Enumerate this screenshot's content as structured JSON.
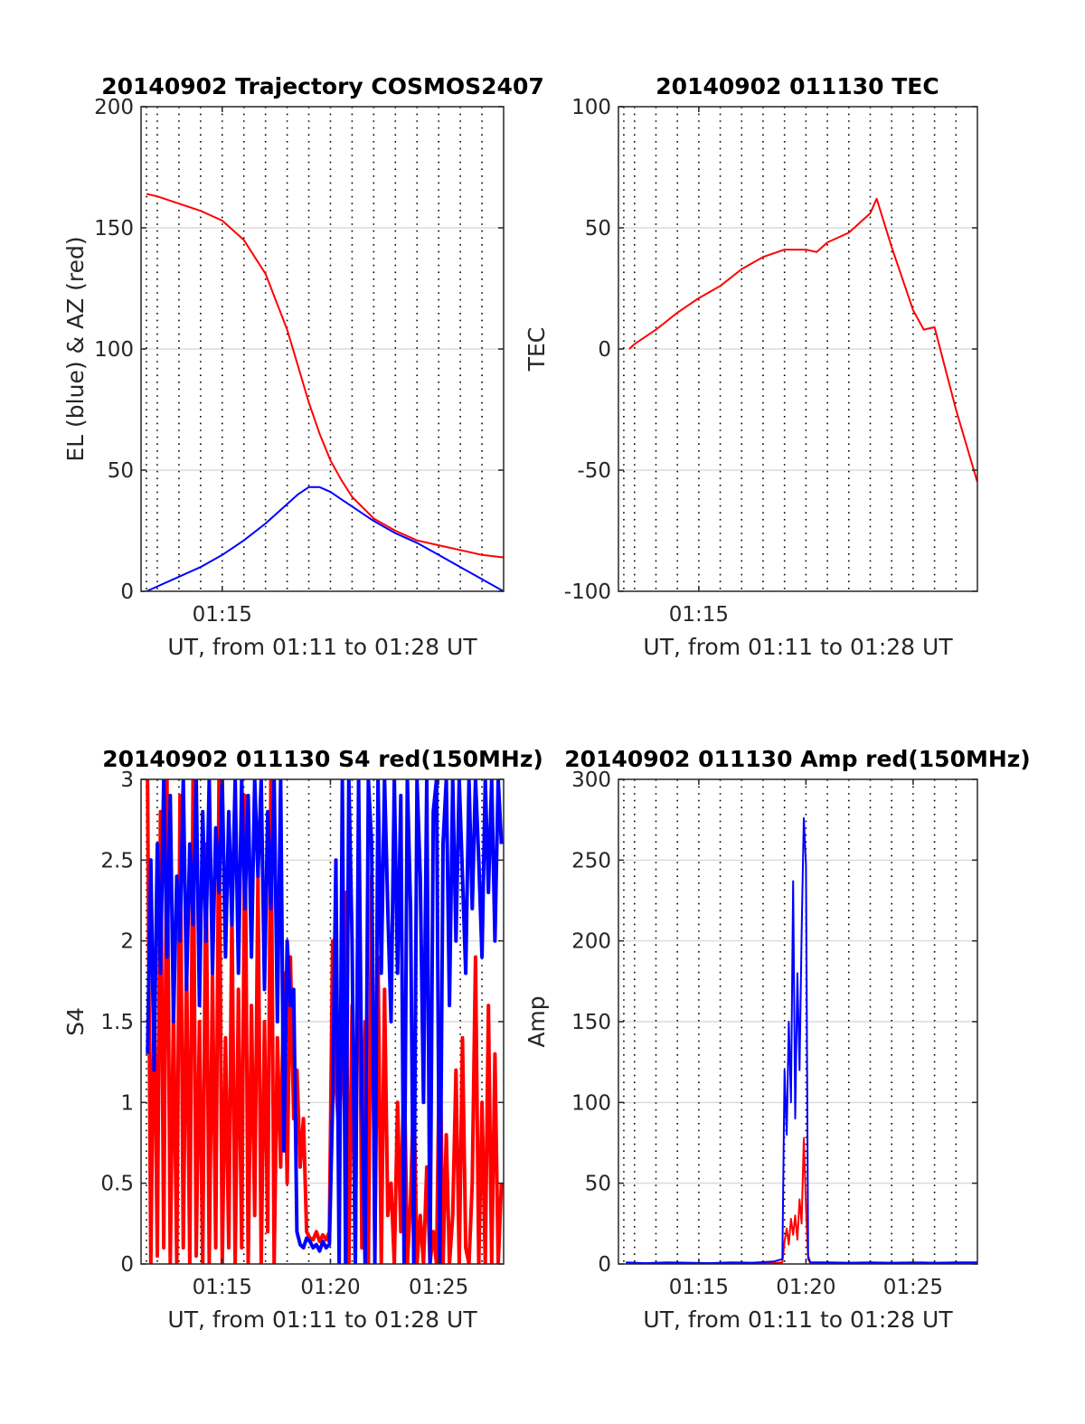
{
  "chart_data": [
    {
      "type": "line",
      "title": "20140902 Trajectory COSMOS2407",
      "xlabel": "UT, from 01:11 to 01:28 UT",
      "ylabel": "EL (blue) & AZ (red)",
      "xlim": [
        11.25,
        28.0
      ],
      "ylim": [
        0,
        200
      ],
      "x_ticks": [
        15
      ],
      "x_tick_labels": [
        "01:15"
      ],
      "y_ticks": [
        0,
        50,
        100,
        150,
        200
      ],
      "y_tick_labels": [
        "0",
        "50",
        "100",
        "150",
        "200"
      ],
      "grid": true,
      "series": [
        {
          "color": "#ff0000",
          "x": [
            11.5,
            12,
            13,
            14,
            15,
            16,
            17,
            18,
            18.5,
            19,
            19.5,
            20,
            20.5,
            21,
            22,
            23,
            24,
            25,
            26,
            27,
            28
          ],
          "y": [
            164,
            163,
            160,
            157,
            153,
            145,
            131,
            108,
            93,
            78,
            65,
            54,
            46,
            39,
            30,
            25,
            21,
            19,
            17,
            15,
            14
          ]
        },
        {
          "color": "#0000ff",
          "x": [
            11.5,
            12,
            13,
            14,
            15,
            16,
            17,
            18,
            18.5,
            19,
            19.5,
            20,
            20.5,
            21,
            22,
            23,
            24,
            25,
            26,
            27,
            28
          ],
          "y": [
            0,
            2,
            6,
            10,
            15,
            21,
            28,
            36,
            40,
            43,
            43,
            41,
            38,
            35,
            29,
            24,
            20,
            15,
            10,
            5,
            0
          ]
        }
      ]
    },
    {
      "type": "line",
      "title": "20140902 011130 TEC",
      "xlabel": "UT, from 01:11 to 01:28 UT",
      "ylabel": "TEC",
      "xlim": [
        11.25,
        28.0
      ],
      "ylim": [
        -100,
        100
      ],
      "x_ticks": [
        15
      ],
      "x_tick_labels": [
        "01:15"
      ],
      "y_ticks": [
        -100,
        -50,
        0,
        50,
        100
      ],
      "y_tick_labels": [
        "-100",
        "-50",
        "0",
        "50",
        "100"
      ],
      "grid": true,
      "series": [
        {
          "color": "#ff0000",
          "x": [
            11.75,
            12,
            13,
            14,
            15,
            16,
            17,
            18,
            19,
            20,
            20.5,
            21,
            22,
            23,
            23.3,
            24,
            25,
            25.5,
            26,
            26.5,
            27,
            28
          ],
          "y": [
            0,
            2,
            8,
            15,
            21,
            26,
            33,
            38,
            41,
            41,
            40,
            44,
            48,
            56,
            62,
            42,
            16,
            8,
            9,
            -8,
            -25,
            -55
          ]
        }
      ]
    },
    {
      "type": "line",
      "title": "20140902 011130 S4 red(150MHz)",
      "xlabel": "UT, from 01:11 to 01:28 UT",
      "ylabel": "S4",
      "xlim": [
        11.25,
        28.0
      ],
      "ylim": [
        0,
        3
      ],
      "x_ticks": [
        15,
        20,
        25
      ],
      "x_tick_labels": [
        "01:15",
        "01:20",
        "01:25"
      ],
      "y_ticks": [
        0,
        0.5,
        1,
        1.5,
        2,
        2.5,
        3
      ],
      "y_tick_labels": [
        "0",
        "0.5",
        "1",
        "1.5",
        "2",
        "2.5",
        "3"
      ],
      "grid": true,
      "series": [
        {
          "color": "#ff0000",
          "x": [
            11.55,
            11.7,
            11.85,
            12.0,
            12.15,
            12.3,
            12.45,
            12.6,
            12.75,
            12.9,
            13.05,
            13.2,
            13.35,
            13.5,
            13.65,
            13.8,
            13.95,
            14.1,
            14.25,
            14.4,
            14.55,
            14.7,
            14.85,
            15.0,
            15.15,
            15.3,
            15.45,
            15.6,
            15.75,
            15.9,
            16.05,
            16.2,
            16.35,
            16.5,
            16.65,
            16.8,
            16.95,
            17.1,
            17.25,
            17.4,
            17.55,
            17.7,
            17.85,
            18.0,
            18.15,
            18.3,
            18.45,
            18.6,
            18.75,
            18.9,
            19.05,
            19.2,
            19.35,
            19.5,
            19.65,
            19.8,
            19.95,
            20.1,
            20.25,
            20.4,
            20.55,
            20.7,
            20.85,
            21.0,
            21.15,
            21.3,
            21.45,
            21.6,
            21.75,
            21.9,
            22.05,
            22.2,
            22.35,
            22.5,
            22.65,
            22.8,
            22.95,
            23.1,
            23.25,
            23.4,
            23.55,
            23.7,
            23.85,
            24.0,
            24.15,
            24.3,
            24.45,
            24.6,
            24.75,
            24.9,
            25.05,
            25.2,
            25.35,
            25.5,
            25.65,
            25.8,
            25.95,
            26.1,
            26.25,
            26.4,
            26.55,
            26.7,
            26.85,
            27.0,
            27.15,
            27.3,
            27.45,
            27.6,
            27.75,
            27.9
          ],
          "y": [
            3.0,
            0.0,
            1.8,
            0.05,
            2.8,
            0.1,
            3.0,
            0.0,
            1.6,
            0.0,
            2.9,
            0.1,
            1.9,
            0.0,
            3.0,
            0.05,
            1.5,
            0.0,
            2.6,
            0.0,
            1.8,
            0.1,
            3.0,
            0.0,
            1.4,
            0.1,
            2.2,
            0.0,
            1.7,
            0.1,
            2.9,
            0.0,
            1.6,
            0.3,
            2.4,
            0.0,
            1.5,
            0.2,
            3.0,
            0.0,
            1.4,
            0.6,
            1.8,
            0.5,
            1.9,
            0.9,
            1.2,
            0.6,
            0.9,
            0.2,
            0.16,
            0.15,
            0.2,
            0.14,
            0.18,
            0.15,
            0.2,
            2.0,
            1.1,
            0.8,
            1.3,
            2.3,
            0.0,
            1.6,
            0.0,
            2.8,
            0.1,
            1.5,
            0.0,
            2.4,
            0.1,
            1.9,
            0.0,
            1.7,
            0.3,
            0.5,
            0.0,
            1.0,
            0.2,
            1.3,
            0.0,
            0.4,
            1.1,
            0.0,
            0.3,
            0.0,
            0.6,
            0.0,
            0.2,
            0.0,
            1.5,
            0.0,
            0.8,
            0.0,
            0.3,
            1.2,
            0.0,
            1.4,
            0.1,
            0.0,
            0.5,
            1.9,
            0.0,
            1.0,
            0.0,
            1.6,
            0.0,
            1.3,
            0.0,
            0.5
          ]
        },
        {
          "color": "#0000ff",
          "x": [
            11.55,
            11.7,
            11.85,
            12.0,
            12.15,
            12.3,
            12.45,
            12.6,
            12.75,
            12.9,
            13.05,
            13.2,
            13.35,
            13.5,
            13.65,
            13.8,
            13.95,
            14.1,
            14.25,
            14.4,
            14.55,
            14.7,
            14.85,
            15.0,
            15.15,
            15.3,
            15.45,
            15.6,
            15.75,
            15.9,
            16.05,
            16.2,
            16.35,
            16.5,
            16.65,
            16.8,
            16.95,
            17.1,
            17.25,
            17.4,
            17.55,
            17.7,
            17.85,
            18.0,
            18.15,
            18.3,
            18.45,
            18.6,
            18.75,
            18.9,
            19.05,
            19.2,
            19.35,
            19.5,
            19.65,
            19.8,
            19.95,
            20.1,
            20.25,
            20.4,
            20.55,
            20.7,
            20.85,
            21.0,
            21.15,
            21.3,
            21.45,
            21.6,
            21.75,
            21.9,
            22.05,
            22.2,
            22.35,
            22.5,
            22.65,
            22.8,
            22.95,
            23.1,
            23.25,
            23.4,
            23.55,
            23.7,
            23.85,
            24.0,
            24.15,
            24.3,
            24.45,
            24.6,
            24.75,
            24.9,
            25.05,
            25.2,
            25.35,
            25.5,
            25.65,
            25.8,
            25.95,
            26.1,
            26.25,
            26.4,
            26.55,
            26.7,
            26.85,
            27.0,
            27.15,
            27.3,
            27.45,
            27.6,
            27.75,
            27.9
          ],
          "y": [
            1.3,
            2.5,
            1.2,
            2.6,
            1.8,
            3.0,
            1.9,
            2.9,
            1.5,
            2.4,
            2.0,
            3.0,
            1.7,
            2.6,
            2.1,
            3.0,
            1.6,
            2.8,
            2.0,
            3.0,
            1.8,
            2.7,
            2.3,
            3.0,
            1.9,
            2.8,
            2.1,
            3.0,
            1.8,
            3.0,
            2.2,
            2.9,
            1.9,
            3.0,
            2.4,
            3.0,
            1.7,
            2.8,
            2.2,
            3.0,
            1.5,
            3.0,
            0.7,
            2.0,
            1.6,
            1.7,
            0.2,
            0.12,
            0.1,
            0.16,
            0.14,
            0.1,
            0.12,
            0.08,
            0.14,
            0.1,
            0.12,
            1.0,
            2.5,
            0.0,
            3.0,
            0.0,
            3.0,
            2.0,
            0.0,
            3.0,
            1.0,
            0.0,
            3.0,
            2.6,
            0.0,
            3.0,
            1.8,
            3.0,
            2.2,
            1.5,
            3.0,
            1.8,
            2.9,
            0.0,
            3.0,
            2.2,
            0.0,
            3.0,
            2.4,
            1.0,
            3.0,
            0.0,
            2.8,
            3.0,
            0.0,
            2.6,
            3.0,
            1.6,
            3.0,
            2.0,
            3.0,
            2.4,
            1.8,
            3.0,
            2.2,
            3.0,
            2.5,
            1.9,
            3.0,
            2.3,
            3.0,
            2.0,
            3.0,
            2.6
          ]
        }
      ]
    },
    {
      "type": "line",
      "title": "20140902 011130 Amp red(150MHz)",
      "xlabel": "UT, from 01:11 to 01:28 UT",
      "ylabel": "Amp",
      "xlim": [
        11.25,
        28.0
      ],
      "ylim": [
        0,
        300
      ],
      "x_ticks": [
        15,
        20,
        25
      ],
      "x_tick_labels": [
        "01:15",
        "01:20",
        "01:25"
      ],
      "y_ticks": [
        0,
        50,
        100,
        150,
        200,
        250,
        300
      ],
      "y_tick_labels": [
        "0",
        "50",
        "100",
        "150",
        "200",
        "250",
        "300"
      ],
      "grid": true,
      "series": [
        {
          "color": "#ff0000",
          "x": [
            11.6,
            12.5,
            13.5,
            14.5,
            15.5,
            16.5,
            17.5,
            18.5,
            18.9,
            19.0,
            19.1,
            19.2,
            19.3,
            19.4,
            19.5,
            19.6,
            19.7,
            19.8,
            19.9,
            20.0,
            20.1,
            20.2,
            21,
            22,
            23,
            24,
            25,
            26,
            27,
            28
          ],
          "y": [
            0.5,
            0.4,
            0.6,
            0.5,
            0.4,
            0.5,
            0.6,
            0.5,
            1,
            14,
            22,
            12,
            28,
            18,
            30,
            15,
            40,
            25,
            78,
            35,
            3,
            0.6,
            0.5,
            0.4,
            0.6,
            0.5,
            0.4,
            0.5,
            0.6,
            0.5
          ]
        },
        {
          "color": "#0000ff",
          "x": [
            11.6,
            12.5,
            13.5,
            14.5,
            15.5,
            16.5,
            17.5,
            18.5,
            18.9,
            19.0,
            19.1,
            19.2,
            19.3,
            19.4,
            19.5,
            19.6,
            19.7,
            19.8,
            19.9,
            20.0,
            20.1,
            20.2,
            21,
            22,
            23,
            24,
            25,
            26,
            27,
            28
          ],
          "y": [
            1,
            0.5,
            1,
            0.8,
            0.5,
            1,
            0.8,
            1.5,
            3,
            120,
            80,
            150,
            100,
            237,
            90,
            180,
            120,
            205,
            276,
            247,
            5,
            1,
            1,
            0.8,
            1,
            0.8,
            1,
            0.8,
            1,
            1
          ]
        }
      ]
    }
  ]
}
